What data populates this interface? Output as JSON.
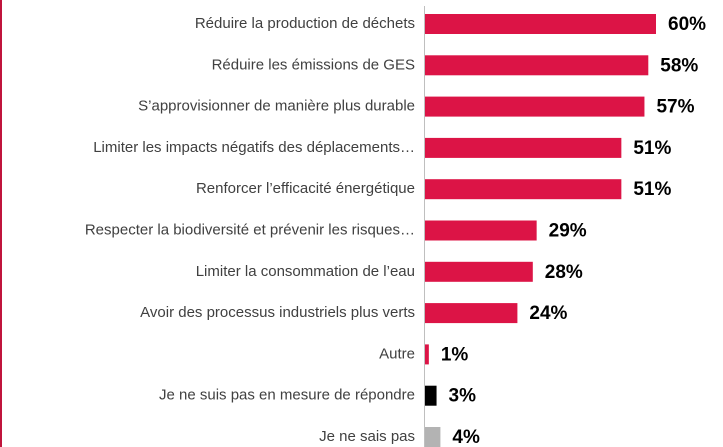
{
  "chart_data": {
    "type": "bar",
    "orientation": "horizontal",
    "categories": [
      "Réduire la production de déchets",
      "Réduire les émissions de GES",
      "S’approvisionner de manière plus durable",
      "Limiter les impacts négatifs des déplacements…",
      "Renforcer l’efficacité énergétique",
      "Respecter la biodiversité et prévenir les risques…",
      "Limiter la consommation de l’eau",
      "Avoir des processus industriels plus verts",
      "Autre",
      "Je ne suis pas en mesure de répondre",
      "Je ne sais pas"
    ],
    "values": [
      60,
      58,
      57,
      51,
      51,
      29,
      28,
      24,
      1,
      3,
      4
    ],
    "value_labels": [
      "60%",
      "58%",
      "57%",
      "51%",
      "51%",
      "29%",
      "28%",
      "24%",
      "1%",
      "3%",
      "4%"
    ],
    "colors": [
      "#dc1446",
      "#dc1446",
      "#dc1446",
      "#dc1446",
      "#dc1446",
      "#dc1446",
      "#dc1446",
      "#dc1446",
      "#dc1446",
      "#000000",
      "#b3b3b3"
    ]
  }
}
